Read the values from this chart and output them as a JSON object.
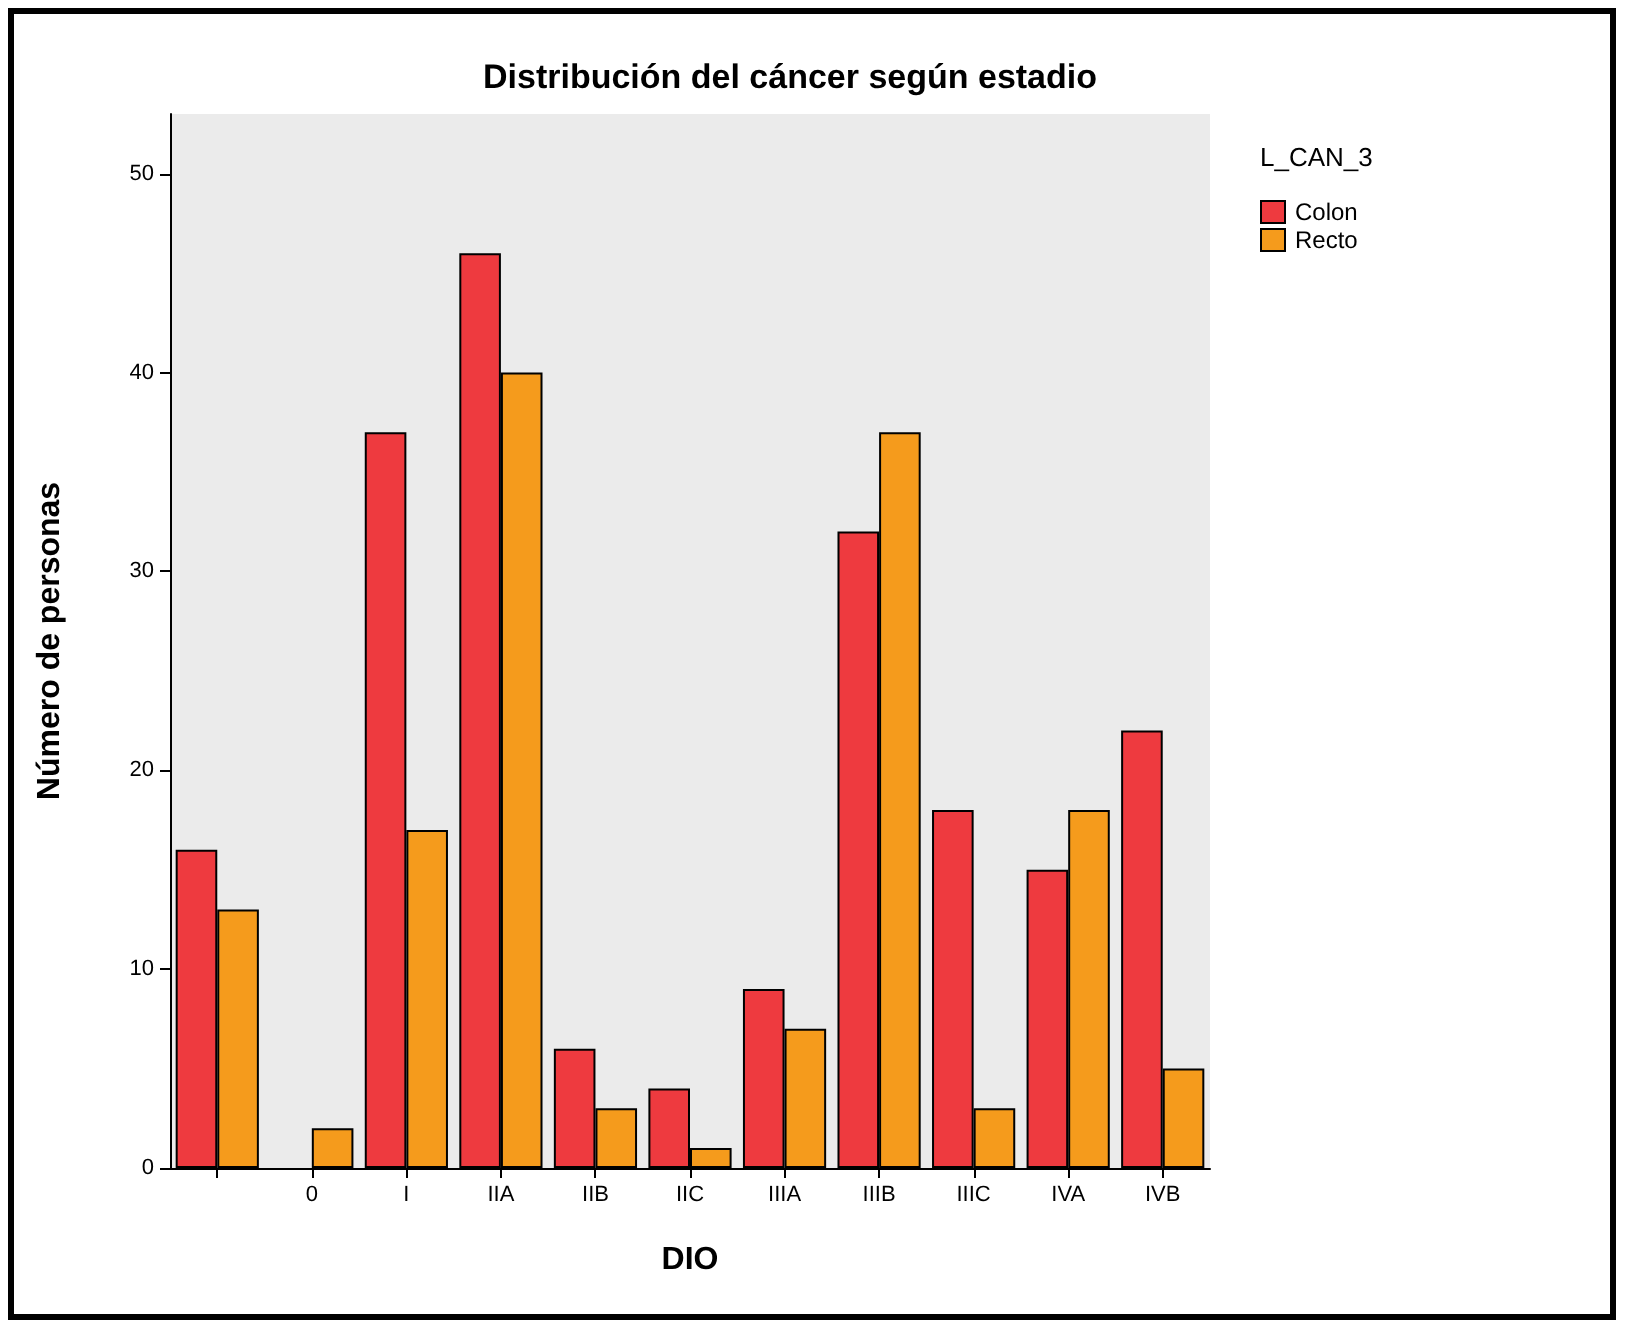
{
  "chart_data": {
    "type": "bar",
    "title": "Distribución del cáncer según estadio",
    "xlabel": "DIO",
    "ylabel": "Número de personas",
    "legend_title": "L_CAN_3",
    "categories": [
      null,
      "0",
      "I",
      "IIA",
      "IIB",
      "IIC",
      "IIIA",
      "IIIB",
      "IIIC",
      "IVA",
      "IVB"
    ],
    "series": [
      {
        "name": "Colon",
        "color": "#ee3a3f",
        "values": [
          16,
          null,
          37,
          46,
          6,
          4,
          9,
          32,
          18,
          15,
          22
        ]
      },
      {
        "name": "Recto",
        "color": "#f59b1c",
        "values": [
          13,
          2,
          17,
          40,
          3,
          1,
          7,
          37,
          3,
          18,
          5
        ]
      }
    ],
    "ylim": [
      0,
      53
    ],
    "yticks": [
      0,
      10,
      20,
      30,
      40,
      50
    ],
    "grid": false,
    "legend": "top right"
  }
}
